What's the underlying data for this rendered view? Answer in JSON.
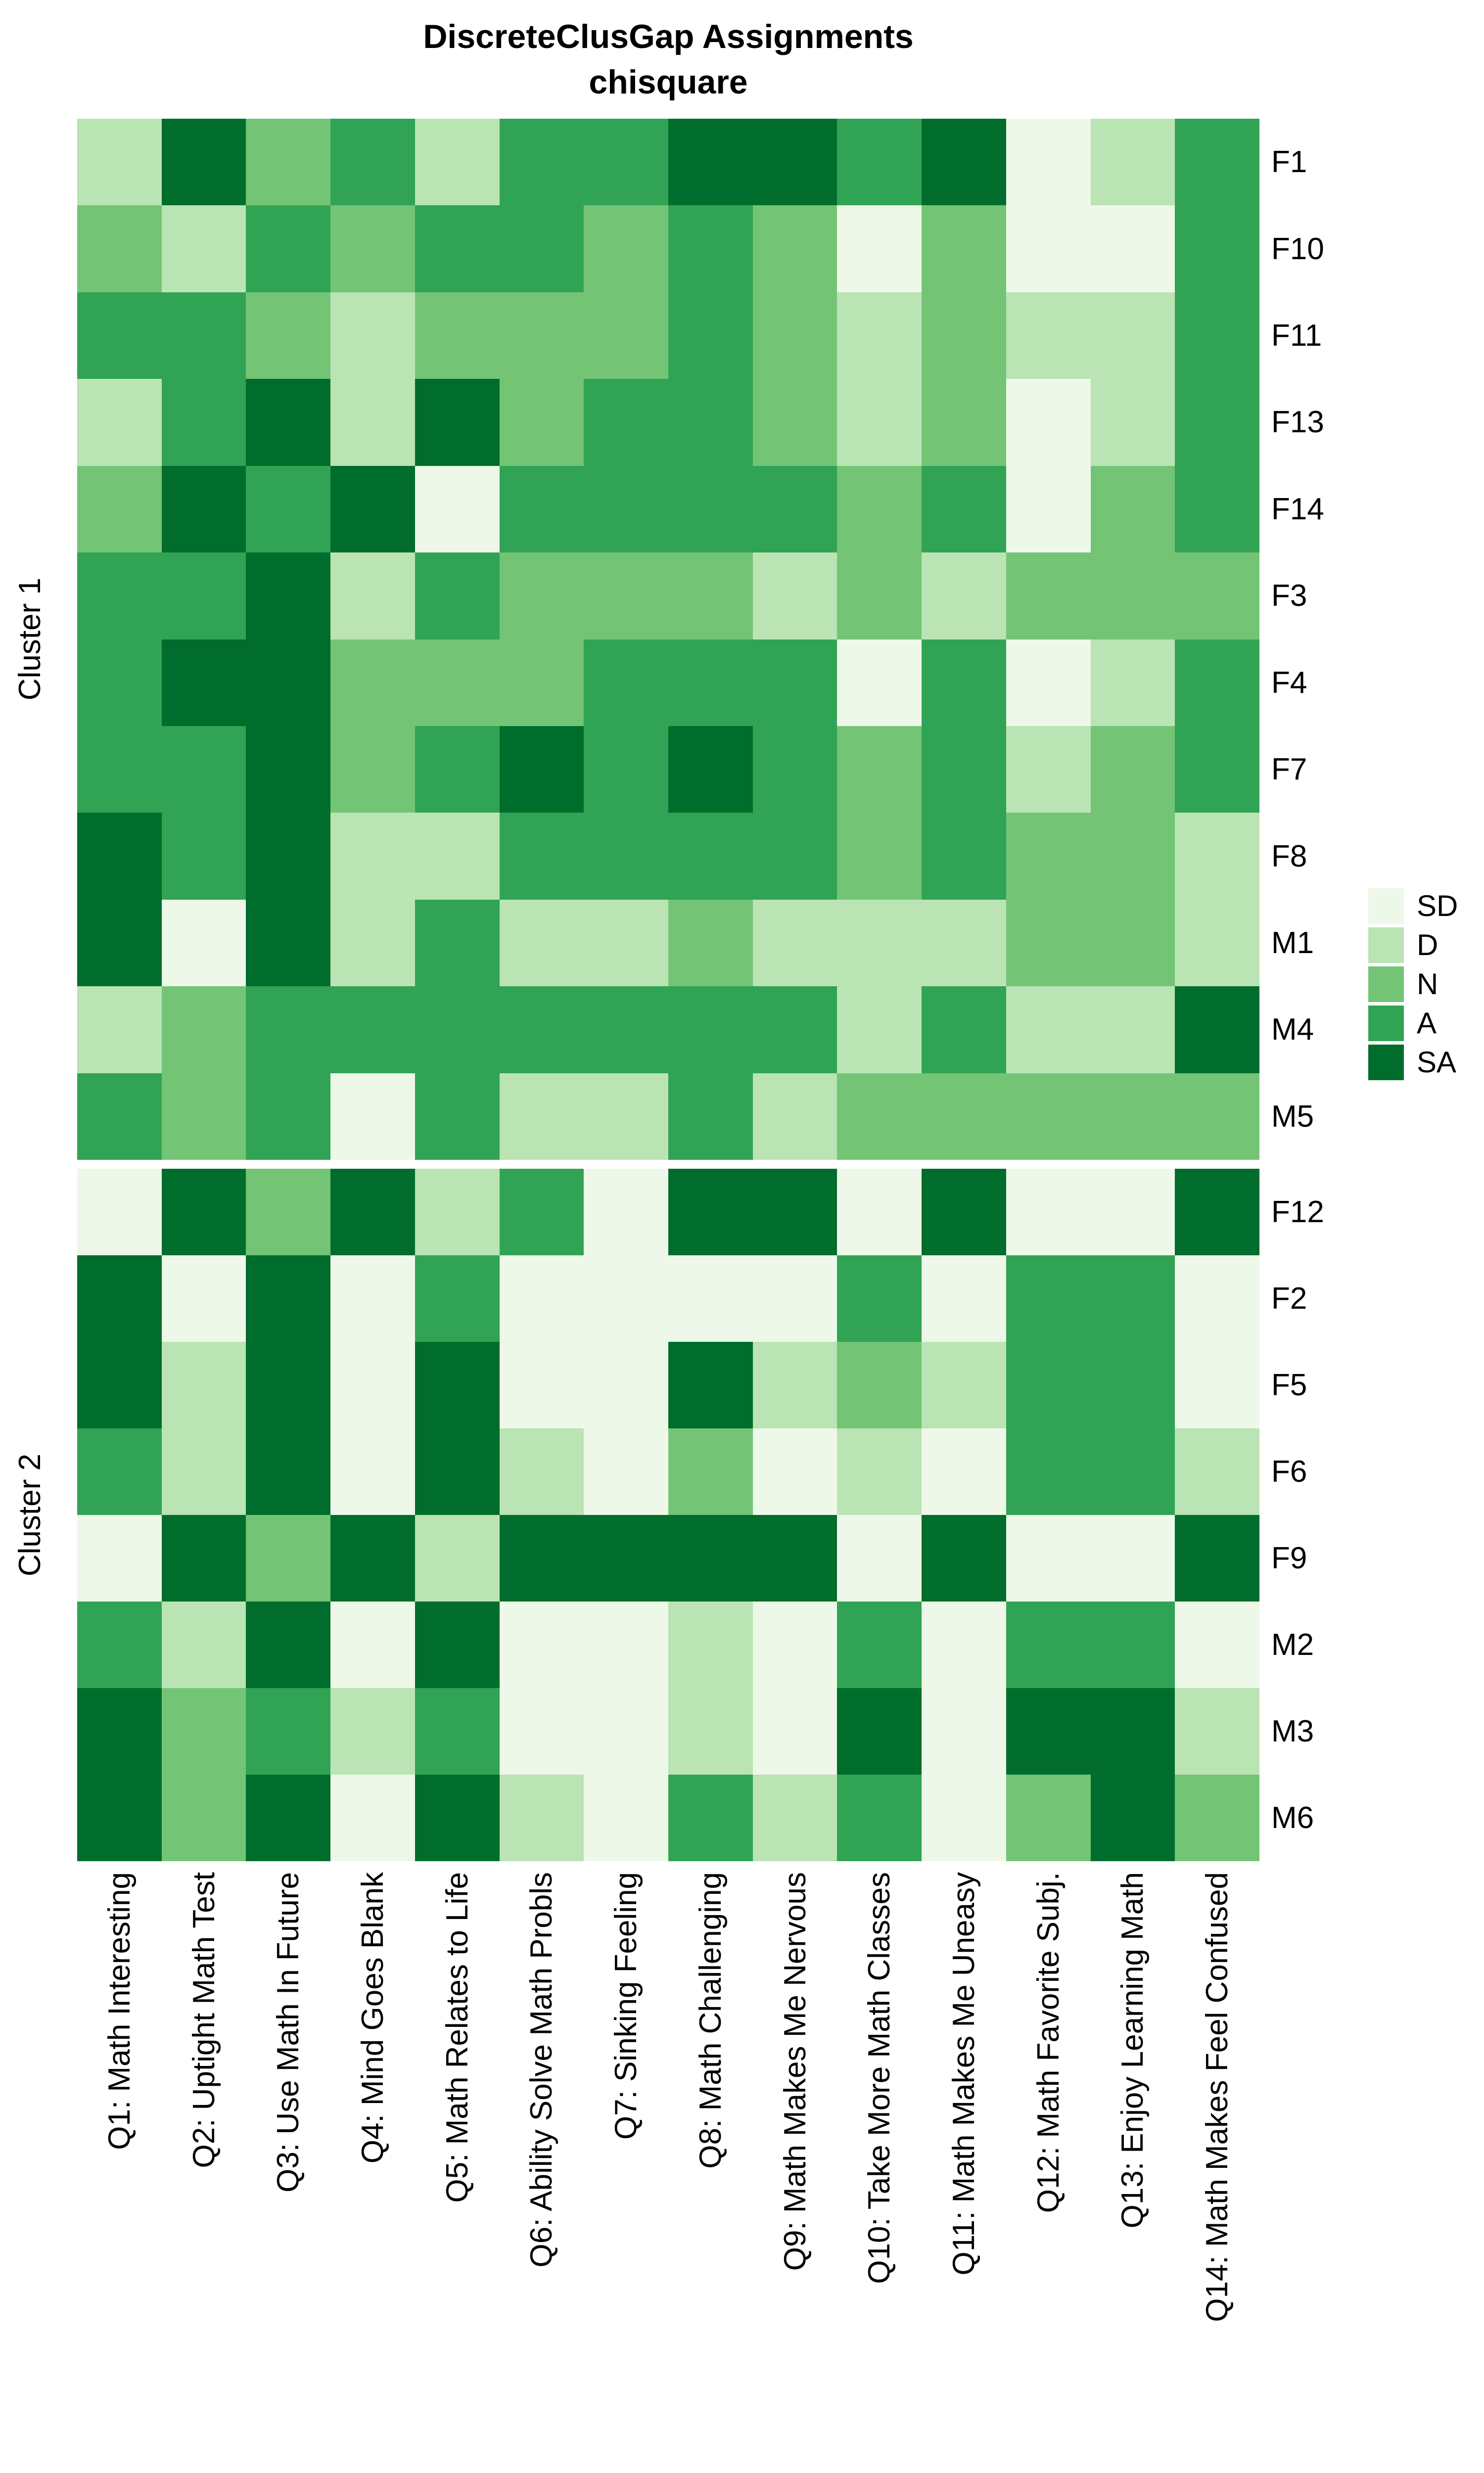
{
  "title": {
    "line1": "DiscreteClusGap Assignments",
    "line2": "chisquare"
  },
  "legend": {
    "entries": [
      {
        "label": "SD",
        "color": "#edf8e9"
      },
      {
        "label": "D",
        "color": "#bae4b3"
      },
      {
        "label": "N",
        "color": "#74c476"
      },
      {
        "label": "A",
        "color": "#31a354"
      },
      {
        "label": "SA",
        "color": "#006d2c"
      }
    ]
  },
  "chart_data": {
    "type": "heatmap",
    "x_categories": [
      "Q1: Math Interesting",
      "Q2: Uptight Math Test",
      "Q3: Use Math In Future",
      "Q4: Mind Goes Blank",
      "Q5: Math Relates to Life",
      "Q6: Ability Solve Math Probls",
      "Q7: Sinking Feeling",
      "Q8: Math Challenging",
      "Q9: Math Makes Me Nervous",
      "Q10: Take More Math Classes",
      "Q11: Math Makes Me Uneasy",
      "Q12: Math Favorite Subj.",
      "Q13: Enjoy Learning Math",
      "Q14: Math Makes Feel Confused"
    ],
    "value_scale": {
      "SD": "#edf8e9",
      "D": "#bae4b3",
      "N": "#74c476",
      "A": "#31a354",
      "SA": "#006d2c"
    },
    "row_groups": [
      {
        "name": "Cluster 1",
        "rows": [
          {
            "label": "F1",
            "values": [
              "D",
              "SA",
              "N",
              "A",
              "D",
              "A",
              "A",
              "SA",
              "SA",
              "A",
              "SA",
              "SD",
              "D",
              "A"
            ]
          },
          {
            "label": "F10",
            "values": [
              "N",
              "D",
              "A",
              "N",
              "A",
              "A",
              "N",
              "A",
              "N",
              "SD",
              "N",
              "SD",
              "SD",
              "A"
            ]
          },
          {
            "label": "F11",
            "values": [
              "A",
              "A",
              "N",
              "D",
              "N",
              "N",
              "N",
              "A",
              "N",
              "D",
              "N",
              "D",
              "D",
              "A"
            ]
          },
          {
            "label": "F13",
            "values": [
              "D",
              "A",
              "SA",
              "D",
              "SA",
              "N",
              "A",
              "A",
              "N",
              "D",
              "N",
              "SD",
              "D",
              "A"
            ]
          },
          {
            "label": "F14",
            "values": [
              "N",
              "SA",
              "A",
              "SA",
              "SD",
              "A",
              "A",
              "A",
              "A",
              "N",
              "A",
              "SD",
              "N",
              "A"
            ]
          },
          {
            "label": "F3",
            "values": [
              "A",
              "A",
              "SA",
              "D",
              "A",
              "N",
              "N",
              "N",
              "D",
              "N",
              "D",
              "N",
              "N",
              "N"
            ]
          },
          {
            "label": "F4",
            "values": [
              "A",
              "SA",
              "SA",
              "N",
              "N",
              "N",
              "A",
              "A",
              "A",
              "SD",
              "A",
              "SD",
              "D",
              "A"
            ]
          },
          {
            "label": "F7",
            "values": [
              "A",
              "A",
              "SA",
              "N",
              "A",
              "SA",
              "A",
              "SA",
              "A",
              "N",
              "A",
              "D",
              "N",
              "A"
            ]
          },
          {
            "label": "F8",
            "values": [
              "SA",
              "A",
              "SA",
              "D",
              "D",
              "A",
              "A",
              "A",
              "A",
              "N",
              "A",
              "N",
              "N",
              "D"
            ]
          },
          {
            "label": "M1",
            "values": [
              "SA",
              "SD",
              "SA",
              "D",
              "A",
              "D",
              "D",
              "N",
              "D",
              "D",
              "D",
              "N",
              "N",
              "D"
            ]
          },
          {
            "label": "M4",
            "values": [
              "D",
              "N",
              "A",
              "A",
              "A",
              "A",
              "A",
              "A",
              "A",
              "D",
              "A",
              "D",
              "D",
              "SA"
            ]
          },
          {
            "label": "M5",
            "values": [
              "A",
              "N",
              "A",
              "SD",
              "A",
              "D",
              "D",
              "A",
              "D",
              "N",
              "N",
              "N",
              "N",
              "N"
            ]
          }
        ]
      },
      {
        "name": "Cluster 2",
        "rows": [
          {
            "label": "F12",
            "values": [
              "SD",
              "SA",
              "N",
              "SA",
              "D",
              "A",
              "SD",
              "SA",
              "SA",
              "SD",
              "SA",
              "SD",
              "SD",
              "SA"
            ]
          },
          {
            "label": "F2",
            "values": [
              "SA",
              "SD",
              "SA",
              "SD",
              "A",
              "SD",
              "SD",
              "SD",
              "SD",
              "A",
              "SD",
              "A",
              "A",
              "SD"
            ]
          },
          {
            "label": "F5",
            "values": [
              "SA",
              "D",
              "SA",
              "SD",
              "SA",
              "SD",
              "SD",
              "SA",
              "D",
              "N",
              "D",
              "A",
              "A",
              "SD"
            ]
          },
          {
            "label": "F6",
            "values": [
              "A",
              "D",
              "SA",
              "SD",
              "SA",
              "D",
              "SD",
              "N",
              "SD",
              "D",
              "SD",
              "A",
              "A",
              "D"
            ]
          },
          {
            "label": "F9",
            "values": [
              "SD",
              "SA",
              "N",
              "SA",
              "D",
              "SA",
              "SA",
              "SA",
              "SA",
              "SD",
              "SA",
              "SD",
              "SD",
              "SA"
            ]
          },
          {
            "label": "M2",
            "values": [
              "A",
              "D",
              "SA",
              "SD",
              "SA",
              "SD",
              "SD",
              "D",
              "SD",
              "A",
              "SD",
              "A",
              "A",
              "SD"
            ]
          },
          {
            "label": "M3",
            "values": [
              "SA",
              "N",
              "A",
              "D",
              "A",
              "SD",
              "SD",
              "D",
              "SD",
              "SA",
              "SD",
              "SA",
              "SA",
              "D"
            ]
          },
          {
            "label": "M6",
            "values": [
              "SA",
              "N",
              "SA",
              "SD",
              "SA",
              "D",
              "SD",
              "A",
              "D",
              "A",
              "SD",
              "N",
              "SA",
              "N"
            ]
          }
        ]
      }
    ]
  }
}
